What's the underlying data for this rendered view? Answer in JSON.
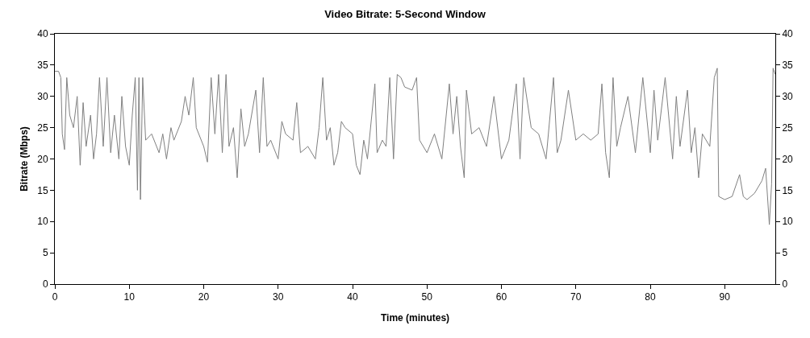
{
  "chart_data": {
    "type": "line",
    "title": "Video Bitrate: 5-Second Window",
    "xlabel": "Time (minutes)",
    "ylabel": "Bitrate (Mbps)",
    "x": [
      0,
      0.5,
      0.8,
      1,
      1.3,
      1.6,
      2,
      2.5,
      3,
      3.4,
      3.8,
      4.2,
      4.8,
      5.2,
      5.6,
      6,
      6.5,
      7,
      7.5,
      8,
      8.6,
      9,
      9.5,
      10,
      10.4,
      10.8,
      11.1,
      11.3,
      11.5,
      11.8,
      12.2,
      13,
      14,
      14.5,
      15,
      15.6,
      16,
      17,
      17.5,
      18,
      18.6,
      19,
      20,
      20.5,
      21,
      21.5,
      22,
      22.5,
      23,
      23.4,
      24,
      24.5,
      25,
      25.5,
      26,
      27,
      27.5,
      28,
      28.5,
      29,
      30,
      30.5,
      31,
      32,
      32.5,
      33,
      34,
      35,
      35.5,
      36,
      36.5,
      37,
      37.5,
      38,
      38.5,
      39,
      40,
      40.5,
      41,
      41.5,
      42,
      43,
      43.3,
      44,
      44.5,
      45,
      45.5,
      46,
      46.5,
      47,
      48,
      48.6,
      49,
      50,
      51,
      52,
      53,
      53.5,
      54,
      54.5,
      55,
      55.3,
      56,
      57,
      58,
      59,
      60,
      61,
      62,
      62.5,
      63,
      64,
      65,
      66,
      67,
      67.5,
      68,
      69,
      70,
      71,
      72,
      73,
      73.5,
      74,
      74.5,
      75,
      75.5,
      76,
      77,
      78,
      79,
      80,
      80.5,
      81,
      82,
      83,
      83.5,
      84,
      85,
      85.5,
      86,
      86.5,
      87,
      88,
      88.6,
      89,
      89.2,
      90,
      91,
      92,
      92.5,
      93,
      94,
      95,
      95.5,
      96,
      96.3,
      96.5,
      96.8
    ],
    "series": [
      {
        "color": "#808080",
        "values": [
          34,
          34,
          33,
          24,
          21.5,
          33,
          27,
          25,
          30,
          19,
          29,
          22,
          27,
          20,
          24,
          33,
          22,
          33,
          21,
          27,
          20,
          30,
          22,
          19,
          27,
          33,
          15,
          33,
          13.5,
          33,
          23,
          24,
          21,
          24,
          20,
          25,
          23,
          26,
          30,
          27,
          33,
          25,
          22,
          19.5,
          33,
          24,
          33.5,
          21,
          33.5,
          22,
          25,
          17,
          28,
          22,
          24,
          31,
          21,
          33,
          22,
          23,
          20,
          26,
          24,
          23,
          29,
          21,
          22,
          20,
          25,
          33,
          23,
          25,
          19,
          21,
          26,
          25,
          24,
          19,
          17.5,
          23,
          20,
          32,
          21,
          23,
          22,
          33,
          20,
          33.5,
          33,
          31.5,
          31,
          33,
          23,
          21,
          24,
          20,
          32,
          24,
          30,
          22,
          17,
          31,
          24,
          25,
          22,
          30,
          20,
          23,
          32,
          20,
          33,
          25,
          24,
          20,
          33,
          21,
          23,
          31,
          23,
          24,
          23,
          24,
          32,
          21,
          17,
          33,
          22,
          25,
          30,
          21,
          33,
          21,
          31,
          23,
          33,
          20,
          30,
          22,
          31,
          21,
          25,
          17,
          24,
          22,
          33,
          34.5,
          14,
          13.5,
          14,
          17.5,
          14,
          13.5,
          14.5,
          16.5,
          18.5,
          9.5,
          16,
          34.5,
          33.5
        ]
      }
    ],
    "xlim": [
      0,
      96.8
    ],
    "xticks": [
      0,
      10,
      20,
      30,
      40,
      50,
      60,
      70,
      80,
      90
    ],
    "ylim": [
      0,
      40
    ],
    "yticks": [
      0,
      5,
      10,
      15,
      20,
      25,
      30,
      35,
      40
    ],
    "y2lim": [
      0,
      40
    ],
    "y2ticks": [
      0,
      5,
      10,
      15,
      20,
      25,
      30,
      35,
      40
    ],
    "line_style": "solid"
  }
}
